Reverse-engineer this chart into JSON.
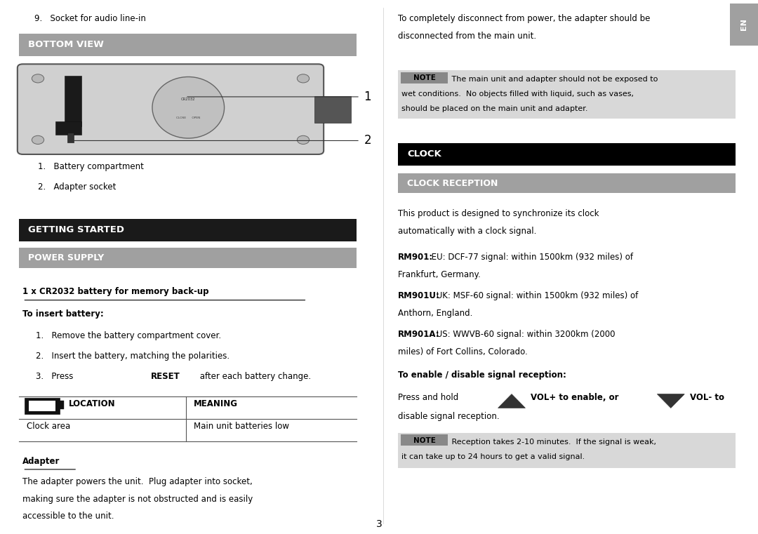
{
  "page_bg": "#ffffff",
  "top_item": "9.   Socket for audio line-in",
  "bottom_view_header": "BOTTOM VIEW",
  "bottom_view_header_bg": "#a0a0a0",
  "bottom_view_header_color": "#ffffff",
  "getting_started_header": "GETTING STARTED",
  "getting_started_bg": "#1a1a1a",
  "getting_started_color": "#ffffff",
  "power_supply_header": "POWER SUPPLY",
  "power_supply_bg": "#a0a0a0",
  "power_supply_color": "#ffffff",
  "battery_title": "1 x CR2032 battery for memory back-up",
  "to_insert": "To insert battery:",
  "insert_steps": [
    "Remove the battery compartment cover.",
    "Insert the battery, matching the polarities.",
    "Press RESET after each battery change."
  ],
  "table_col1_header": "LOCATION",
  "table_col2_header": "MEANING",
  "table_row1_col1": "Clock area",
  "table_row1_col2": "Main unit batteries low",
  "adapter_title": "Adapter",
  "adapter_lines": [
    "The adapter powers the unit.  Plug adapter into socket,",
    "making sure the adapter is not obstructed and is easily",
    "accessible to the unit."
  ],
  "right_top_lines": [
    "To completely disconnect from power, the adapter should be",
    "disconnected from the main unit."
  ],
  "note1_line1": " The main unit and adapter should not be exposed to",
  "note1_line2": "wet conditions.  No objects filled with liquid, such as vases,",
  "note1_line3": "should be placed on the main unit and adapter.",
  "clock_header": "CLOCK",
  "clock_header_bg": "#000000",
  "clock_header_color": "#ffffff",
  "clock_reception_header": "CLOCK RECEPTION",
  "clock_reception_bg": "#a0a0a0",
  "clock_reception_color": "#ffffff",
  "clock_reception_lines": [
    "This product is designed to synchronize its clock",
    "automatically with a clock signal."
  ],
  "rm901_bold": "RM901:",
  "rm901_rest": " EU: DCF-77 signal: within 1500km (932 miles) of Frankfurt, Germany.",
  "rm901u_bold": "RM901U:",
  "rm901u_rest": " UK: MSF-60 signal: within 1500km (932 miles) of Anthorn, England.",
  "rm901a_bold": "RM901A:",
  "rm901a_rest": " US: WWVB-60 signal: within 3200km (2000 miles) of Fort Collins, Colorado.",
  "enable_disable_title": "To enable / disable signal reception:",
  "press_hold": "Press and hold",
  "vol_plus": "VOL+ to enable, or",
  "vol_minus": "VOL- to",
  "disable_text": "disable signal reception.",
  "note2_line1": " Reception takes 2-10 minutes.  If the signal is weak,",
  "note2_line2": "it can take up to 24 hours to get a valid signal.",
  "page_number": "3",
  "en_tab_bg": "#a0a0a0",
  "en_tab_color": "#ffffff"
}
